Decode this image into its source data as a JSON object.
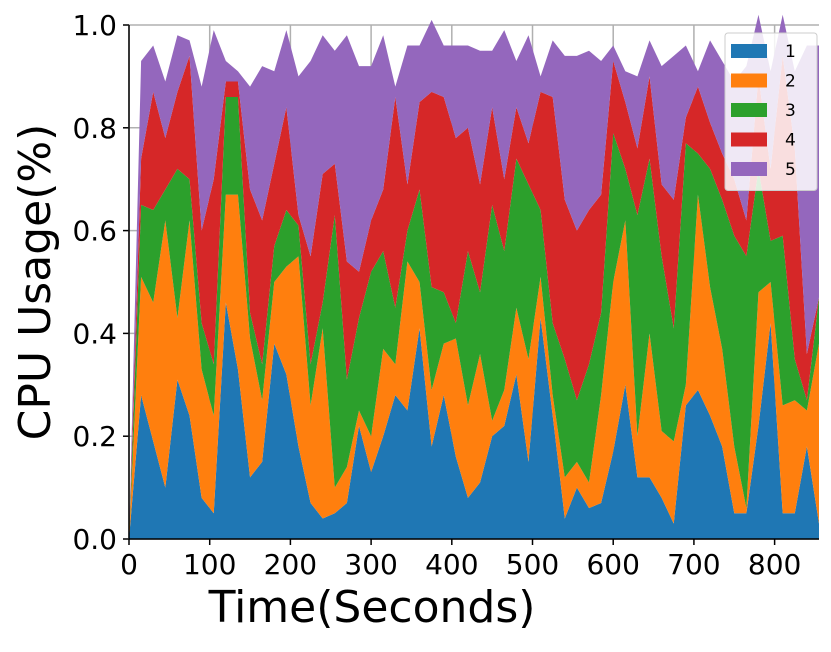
{
  "chart_data": {
    "type": "stacked-area",
    "xlabel": "Time(Seconds)",
    "ylabel": "CPU Usage(%)",
    "x": [
      0,
      15,
      30,
      45,
      60,
      75,
      90,
      105,
      120,
      135,
      150,
      165,
      180,
      195,
      210,
      225,
      240,
      255,
      270,
      285,
      300,
      315,
      330,
      345,
      360,
      375,
      390,
      405,
      420,
      435,
      450,
      465,
      480,
      495,
      510,
      525,
      540,
      555,
      570,
      585,
      600,
      615,
      630,
      645,
      660,
      675,
      690,
      705,
      720,
      735,
      750,
      765,
      780,
      795,
      810,
      825,
      840,
      855
    ],
    "series": [
      {
        "name": "1",
        "color": "#1f77b4",
        "values": [
          0,
          0.28,
          0.19,
          0.1,
          0.31,
          0.24,
          0.08,
          0.05,
          0.46,
          0.33,
          0.12,
          0.15,
          0.38,
          0.32,
          0.18,
          0.07,
          0.04,
          0.05,
          0.07,
          0.22,
          0.13,
          0.2,
          0.28,
          0.25,
          0.41,
          0.18,
          0.28,
          0.16,
          0.08,
          0.11,
          0.2,
          0.22,
          0.32,
          0.15,
          0.43,
          0.24,
          0.04,
          0.1,
          0.06,
          0.07,
          0.17,
          0.3,
          0.12,
          0.12,
          0.08,
          0.03,
          0.26,
          0.29,
          0.24,
          0.18,
          0.05,
          0.05,
          0.22,
          0.42,
          0.05,
          0.05,
          0.18,
          0.03
        ]
      },
      {
        "name": "2",
        "color": "#ff7f0e",
        "values": [
          0,
          0.23,
          0.27,
          0.52,
          0.12,
          0.38,
          0.25,
          0.19,
          0.21,
          0.34,
          0.27,
          0.12,
          0.12,
          0.21,
          0.37,
          0.19,
          0.37,
          0.05,
          0.07,
          0.03,
          0.07,
          0.17,
          0.06,
          0.29,
          0.09,
          0.11,
          0.1,
          0.23,
          0.18,
          0.25,
          0.03,
          0.07,
          0.13,
          0.2,
          0.08,
          0.04,
          0.08,
          0.05,
          0.05,
          0.21,
          0.33,
          0.32,
          0.08,
          0.28,
          0.13,
          0.16,
          0.04,
          0.38,
          0.25,
          0.19,
          0.13,
          0.01,
          0.26,
          0.08,
          0.21,
          0.22,
          0.07,
          0.35
        ]
      },
      {
        "name": "3",
        "color": "#2ca02c",
        "values": [
          0,
          0.14,
          0.18,
          0.06,
          0.29,
          0.08,
          0.09,
          0.1,
          0.19,
          0.19,
          0.05,
          0.07,
          0.07,
          0.11,
          0.06,
          0.08,
          0.05,
          0.53,
          0.17,
          0.18,
          0.32,
          0.19,
          0.11,
          0.06,
          0.18,
          0.2,
          0.1,
          0.03,
          0.3,
          0.12,
          0.42,
          0.27,
          0.29,
          0.34,
          0.13,
          0.14,
          0.23,
          0.12,
          0.23,
          0.16,
          0.29,
          0.1,
          0.43,
          0.34,
          0.34,
          0.22,
          0.47,
          0.08,
          0.23,
          0.29,
          0.41,
          0.49,
          0.24,
          0.08,
          0.33,
          0.08,
          0.02,
          0.09
        ]
      },
      {
        "name": "4",
        "color": "#d62728",
        "values": [
          0,
          0.09,
          0.23,
          0.1,
          0.15,
          0.24,
          0.18,
          0.36,
          0.03,
          0.03,
          0.24,
          0.28,
          0.16,
          0.2,
          0.02,
          0.21,
          0.25,
          0.1,
          0.23,
          0.09,
          0.1,
          0.12,
          0.41,
          0.09,
          0.17,
          0.38,
          0.38,
          0.36,
          0.24,
          0.21,
          0.19,
          0.14,
          0.1,
          0.08,
          0.23,
          0.44,
          0.31,
          0.33,
          0.3,
          0.23,
          0.14,
          0.13,
          0.13,
          0.16,
          0.14,
          0.25,
          0.05,
          0.13,
          0.09,
          0.09,
          0.11,
          0.07,
          0.18,
          0.14,
          0.35,
          0.41,
          0.09,
          0
        ]
      },
      {
        "name": "5",
        "color": "#9467bd",
        "values": [
          0,
          0.19,
          0.09,
          0.11,
          0.11,
          0.03,
          0.28,
          0.29,
          0.04,
          0.02,
          0.2,
          0.3,
          0.18,
          0.15,
          0.27,
          0.38,
          0.27,
          0.22,
          0.44,
          0.4,
          0.3,
          0.3,
          0.02,
          0.27,
          0.11,
          0.14,
          0.1,
          0.18,
          0.16,
          0.26,
          0.11,
          0.29,
          0.09,
          0.21,
          0.03,
          0.11,
          0.28,
          0.34,
          0.31,
          0.26,
          0.03,
          0.06,
          0.14,
          0.07,
          0.23,
          0.28,
          0.14,
          0.03,
          0.16,
          0.18,
          0.19,
          0.3,
          0.12,
          0.19,
          0.08,
          0.15,
          0.6,
          0.49
        ]
      }
    ],
    "xlim": [
      0,
      855
    ],
    "xticks": [
      0,
      100,
      200,
      300,
      400,
      500,
      600,
      700,
      800
    ],
    "ylim": [
      0,
      1
    ],
    "yticks": [
      {
        "value": 0,
        "label": "0.0"
      },
      {
        "value": 0.2,
        "label": "0.2"
      },
      {
        "value": 0.4,
        "label": "0.4"
      },
      {
        "value": 0.6,
        "label": "0.6"
      },
      {
        "value": 0.8,
        "label": "0.8"
      },
      {
        "value": 1,
        "label": "1.0"
      }
    ],
    "grid": true,
    "legend": "upper-right"
  }
}
